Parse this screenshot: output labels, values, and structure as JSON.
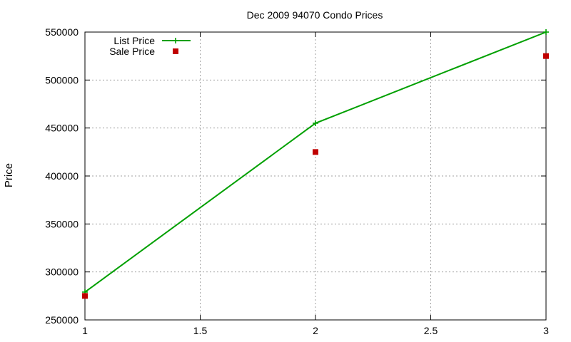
{
  "chart_data": {
    "type": "line",
    "title": "Dec 2009 94070 Condo Prices",
    "xlabel": "",
    "ylabel": "Price",
    "xlim": [
      1,
      3
    ],
    "ylim": [
      250000,
      550000
    ],
    "xticks": [
      1,
      1.5,
      2,
      2.5,
      3
    ],
    "xtick_labels": [
      "1",
      "1.5",
      "2",
      "2.5",
      "3"
    ],
    "yticks": [
      250000,
      300000,
      350000,
      400000,
      450000,
      500000,
      550000
    ],
    "ytick_labels": [
      "250000",
      "300000",
      "350000",
      "400000",
      "450000",
      "500000",
      "550000"
    ],
    "grid": true,
    "legend_position": "top-left",
    "series": [
      {
        "name": "List Price",
        "style": "linespoints",
        "marker": "plus",
        "color": "#00a000",
        "x": [
          1,
          2,
          3
        ],
        "y": [
          279000,
          455000,
          550000
        ]
      },
      {
        "name": "Sale Price",
        "style": "points",
        "marker": "square",
        "color": "#c00000",
        "x": [
          1,
          2,
          3
        ],
        "y": [
          275000,
          425000,
          525000
        ]
      }
    ]
  }
}
